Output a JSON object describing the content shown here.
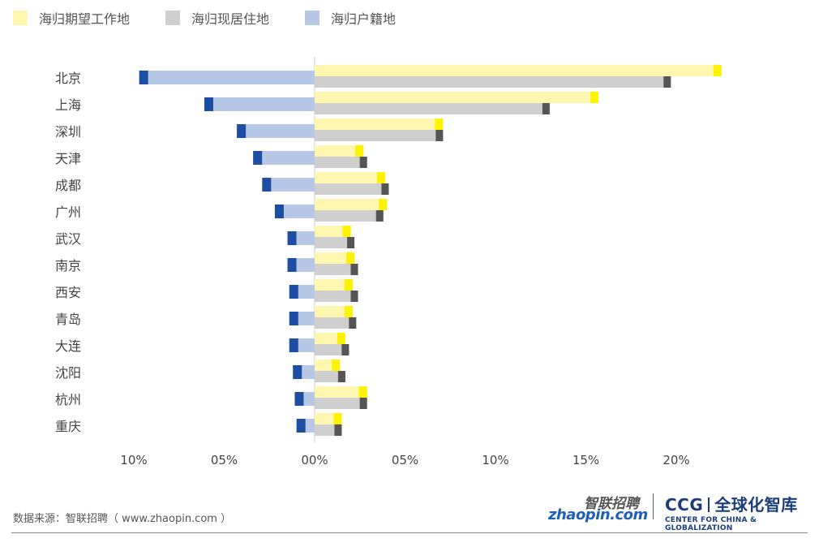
{
  "legend": [
    {
      "label": "海归期望工作地",
      "color": "#fff7b0"
    },
    {
      "label": "海归现居住地",
      "color": "#cfcfcf"
    },
    {
      "label": "海归户籍地",
      "color": "#b7c8e6"
    }
  ],
  "chart_data": {
    "type": "bar",
    "orientation": "horizontal-diverging",
    "categories": [
      "北京",
      "上海",
      "深圳",
      "天津",
      "成都",
      "广州",
      "武汉",
      "南京",
      "西安",
      "青岛",
      "大连",
      "沈阳",
      "杭州",
      "重庆"
    ],
    "series": [
      {
        "name": "海归期望工作地",
        "values": [
          22.5,
          15.7,
          7.1,
          2.7,
          3.9,
          4.0,
          2.0,
          2.2,
          2.1,
          2.1,
          1.7,
          1.4,
          2.9,
          1.5
        ],
        "color": "#fff7b0",
        "cap_color": "#fff200",
        "direction": "right"
      },
      {
        "name": "海归现居住地",
        "values": [
          19.7,
          13.0,
          7.1,
          2.9,
          4.1,
          3.8,
          2.2,
          2.4,
          2.4,
          2.3,
          1.9,
          1.7,
          2.9,
          1.5
        ],
        "color": "#cfcfcf",
        "cap_color": "#555555",
        "direction": "right"
      },
      {
        "name": "海归户籍地",
        "values": [
          9.7,
          6.1,
          4.3,
          3.4,
          2.9,
          2.2,
          1.5,
          1.5,
          1.4,
          1.4,
          1.4,
          1.2,
          1.1,
          1.0
        ],
        "color": "#b7c8e6",
        "cap_color": "#1e4ea3",
        "direction": "left"
      }
    ],
    "x_tick_labels": [
      "10%",
      "05%",
      "00%",
      "05%",
      "10%",
      "15%",
      "20%"
    ],
    "xlim_left": 10,
    "xlim_right": 20
  },
  "footer": {
    "source": "数据来源：智联招聘（ www.zhaopin.com ）",
    "zhaopin_cn": "智联招聘",
    "zhaopin_en": "zhaopin.com",
    "ccg_main": "CCG",
    "ccg_cn": "全球化智库",
    "ccg_en": "CENTER FOR CHINA & GLOBALIZATION"
  }
}
